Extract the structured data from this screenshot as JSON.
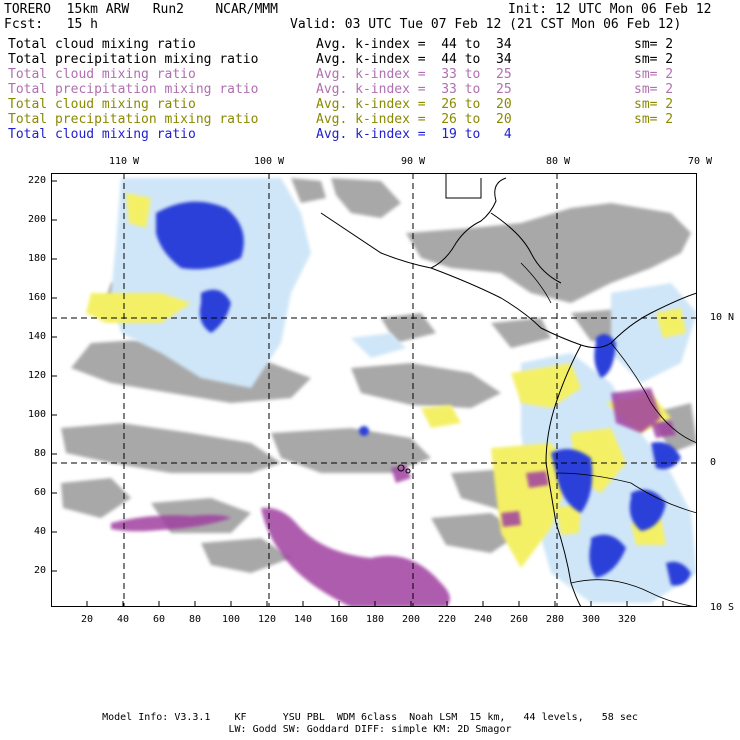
{
  "header": {
    "left1": "TORERO  15km ARW   Run2    NCAR/MMM",
    "left2": "Fcst:   15 h",
    "init": "Init: 12 UTC Mon 06 Feb 12",
    "valid": "Valid: 03 UTC Tue 07 Feb 12 (21 CST Mon 06 Feb 12)"
  },
  "legend": [
    {
      "field": "Total cloud mixing ratio",
      "kindex": "Avg. k-index =  44 to  34",
      "sm": "sm= 2",
      "color": "#000000"
    },
    {
      "field": "Total precipitation mixing ratio",
      "kindex": "Avg. k-index =  44 to  34",
      "sm": "sm= 2",
      "color": "#000000"
    },
    {
      "field": "Total cloud mixing ratio",
      "kindex": "Avg. k-index =  33 to  25",
      "sm": "sm= 2",
      "color": "#b070b0"
    },
    {
      "field": "Total precipitation mixing ratio",
      "kindex": "Avg. k-index =  33 to  25",
      "sm": "sm= 2",
      "color": "#b070b0"
    },
    {
      "field": "Total cloud mixing ratio",
      "kindex": "Avg. k-index =  26 to  20",
      "sm": "sm= 2",
      "color": "#8a8a00"
    },
    {
      "field": "Total precipitation mixing ratio",
      "kindex": "Avg. k-index =  26 to  20",
      "sm": "sm= 2",
      "color": "#8a8a00"
    },
    {
      "field": "Total cloud mixing ratio",
      "kindex": "Avg. k-index =  19 to   4",
      "sm": "",
      "color": "#2020d0"
    }
  ],
  "lon_labels": [
    "110 W",
    "100 W",
    "90 W",
    "80 W",
    "70 W"
  ],
  "lat_labels": [
    "10 N",
    "0",
    "10 S"
  ],
  "x_ticks": [
    "20",
    "40",
    "60",
    "80",
    "100",
    "120",
    "140",
    "160",
    "180",
    "200",
    "220",
    "240",
    "260",
    "280",
    "300",
    "320"
  ],
  "y_ticks": [
    "220",
    "200",
    "180",
    "160",
    "140",
    "120",
    "100",
    "80",
    "60",
    "40",
    "20"
  ],
  "footer": {
    "line1": "Model Info: V3.3.1    KF      YSU PBL  WDM 6class  Noah LSM  15 km,   44 levels,   58 sec",
    "line2": "LW: Godd SW: Goddard DIFF: simple KM: 2D Smagor"
  }
}
